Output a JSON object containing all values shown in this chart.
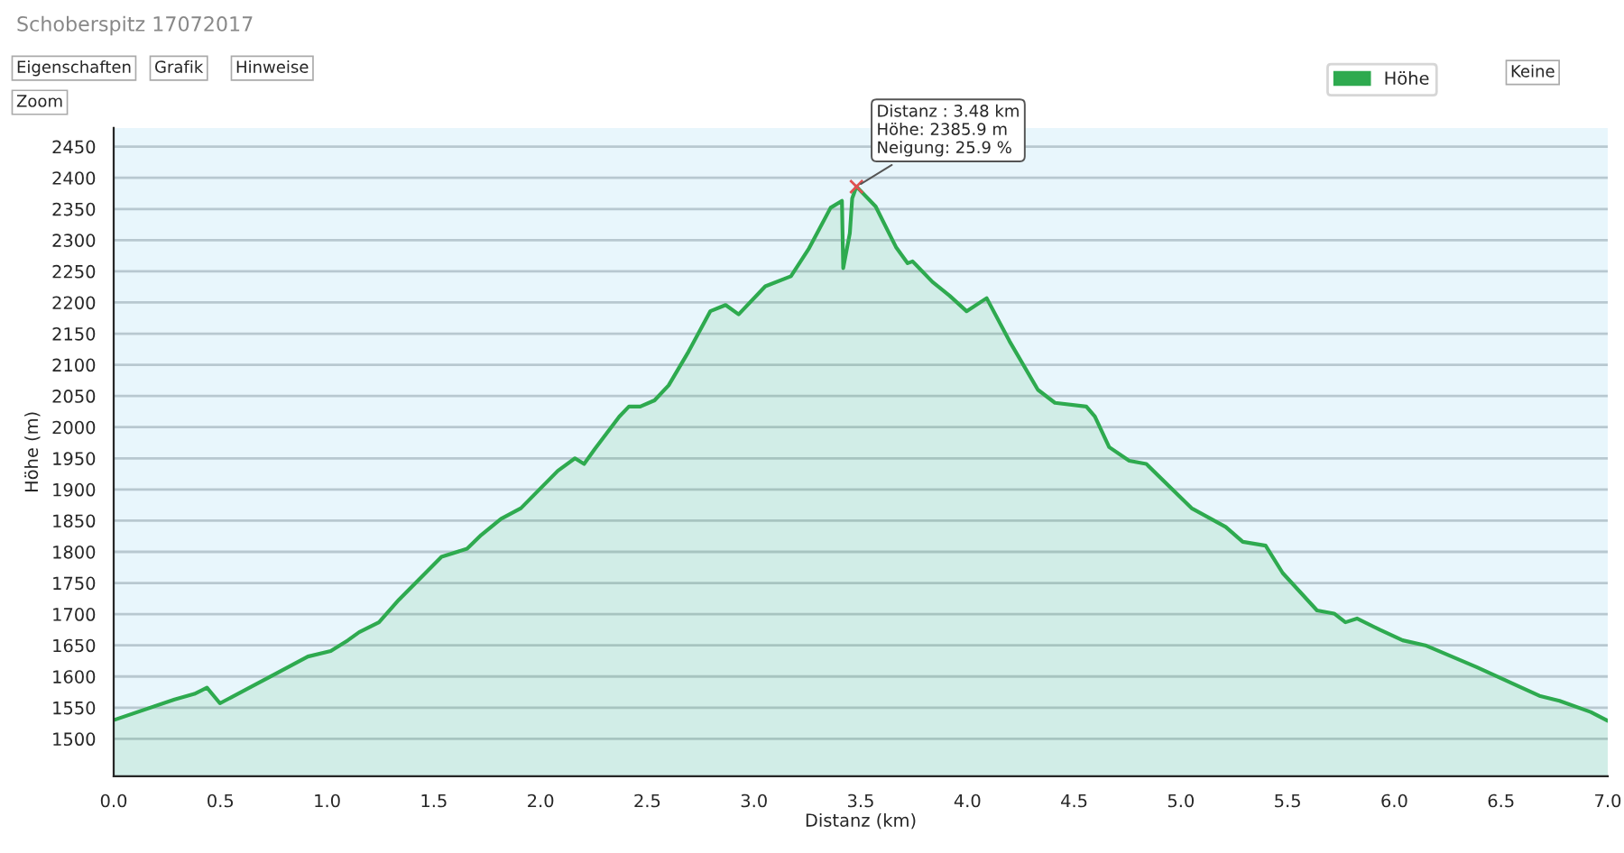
{
  "chart_data": {
    "type": "area",
    "title": "Schoberspitz 17072017",
    "xlabel": "Distanz (km)",
    "ylabel": "Höhe (m)",
    "annotations": [
      "Eigenschaften",
      "Grafik",
      "Hinweise",
      "Zoom",
      "Keine",
      {
        "text": "Distanz : 3.48 km\nHöhe: 2385.9 m\nNeigung: 25.9 %",
        "x": 3.48,
        "y": 2385.9
      }
    ],
    "series": [
      {
        "name": "Höhe",
        "color": "#2eaa4f",
        "x": [
          0.0,
          0.285,
          0.378,
          0.437,
          0.498,
          0.724,
          0.91,
          1.017,
          1.097,
          1.15,
          1.243,
          1.336,
          1.536,
          1.656,
          1.722,
          1.815,
          1.908,
          2.081,
          2.161,
          2.204,
          2.254,
          2.369,
          2.414,
          2.467,
          2.534,
          2.6,
          2.693,
          2.795,
          2.867,
          2.928,
          3.053,
          3.173,
          3.258,
          3.359,
          3.412,
          3.418,
          3.449,
          3.46,
          3.48,
          3.57,
          3.665,
          3.72,
          3.743,
          3.836,
          3.916,
          3.996,
          4.09,
          4.197,
          4.33,
          4.41,
          4.557,
          4.597,
          4.664,
          4.758,
          4.838,
          5.05,
          5.21,
          5.29,
          5.397,
          5.477,
          5.638,
          5.718,
          5.771,
          5.825,
          5.932,
          6.039,
          6.145,
          6.386,
          6.68,
          6.774,
          6.92,
          7.0
        ],
        "values": [
          1530,
          1563,
          1572,
          1582,
          1557,
          1598,
          1632,
          1641,
          1658,
          1671,
          1687,
          1723,
          1792,
          1805,
          1827,
          1853,
          1870,
          1930,
          1950,
          1941,
          1965,
          2017,
          2033,
          2033,
          2043,
          2067,
          2121,
          2186,
          2196,
          2181,
          2226,
          2242,
          2287,
          2352,
          2363,
          2255,
          2311,
          2367,
          2386,
          2354,
          2289,
          2263,
          2266,
          2233,
          2211,
          2186,
          2207,
          2138,
          2060,
          2039,
          2033,
          2017,
          1968,
          1946,
          1941,
          1870,
          1840,
          1816,
          1810,
          1766,
          1706,
          1701,
          1687,
          1693,
          1675,
          1658,
          1650,
          1615,
          1569,
          1561,
          1543,
          1529
        ]
      }
    ],
    "xlim": [
      0,
      7.0
    ],
    "ylim": [
      1440,
      2480
    ],
    "xticks": [
      {
        "value": 0,
        "label": "0.0"
      },
      {
        "value": 0.5,
        "label": "0.5"
      },
      {
        "value": 1,
        "label": "1.0"
      },
      {
        "value": 1.5,
        "label": "1.5"
      },
      {
        "value": 2,
        "label": "2.0"
      },
      {
        "value": 2.5,
        "label": "2.5"
      },
      {
        "value": 3,
        "label": "3.0"
      },
      {
        "value": 3.5,
        "label": "3.5"
      },
      {
        "value": 4,
        "label": "4.0"
      },
      {
        "value": 4.5,
        "label": "4.5"
      },
      {
        "value": 5,
        "label": "5.0"
      },
      {
        "value": 5.5,
        "label": "5.5"
      },
      {
        "value": 6,
        "label": "6.0"
      },
      {
        "value": 6.5,
        "label": "6.5"
      },
      {
        "value": 7,
        "label": "7.0"
      }
    ],
    "yticks": [
      1500,
      1550,
      1600,
      1650,
      1700,
      1750,
      1800,
      1850,
      1900,
      1950,
      2000,
      2050,
      2100,
      2150,
      2200,
      2250,
      2300,
      2350,
      2400,
      2450
    ],
    "grid": "y",
    "legend": "top right",
    "marker": "none",
    "line_style": "solid"
  }
}
